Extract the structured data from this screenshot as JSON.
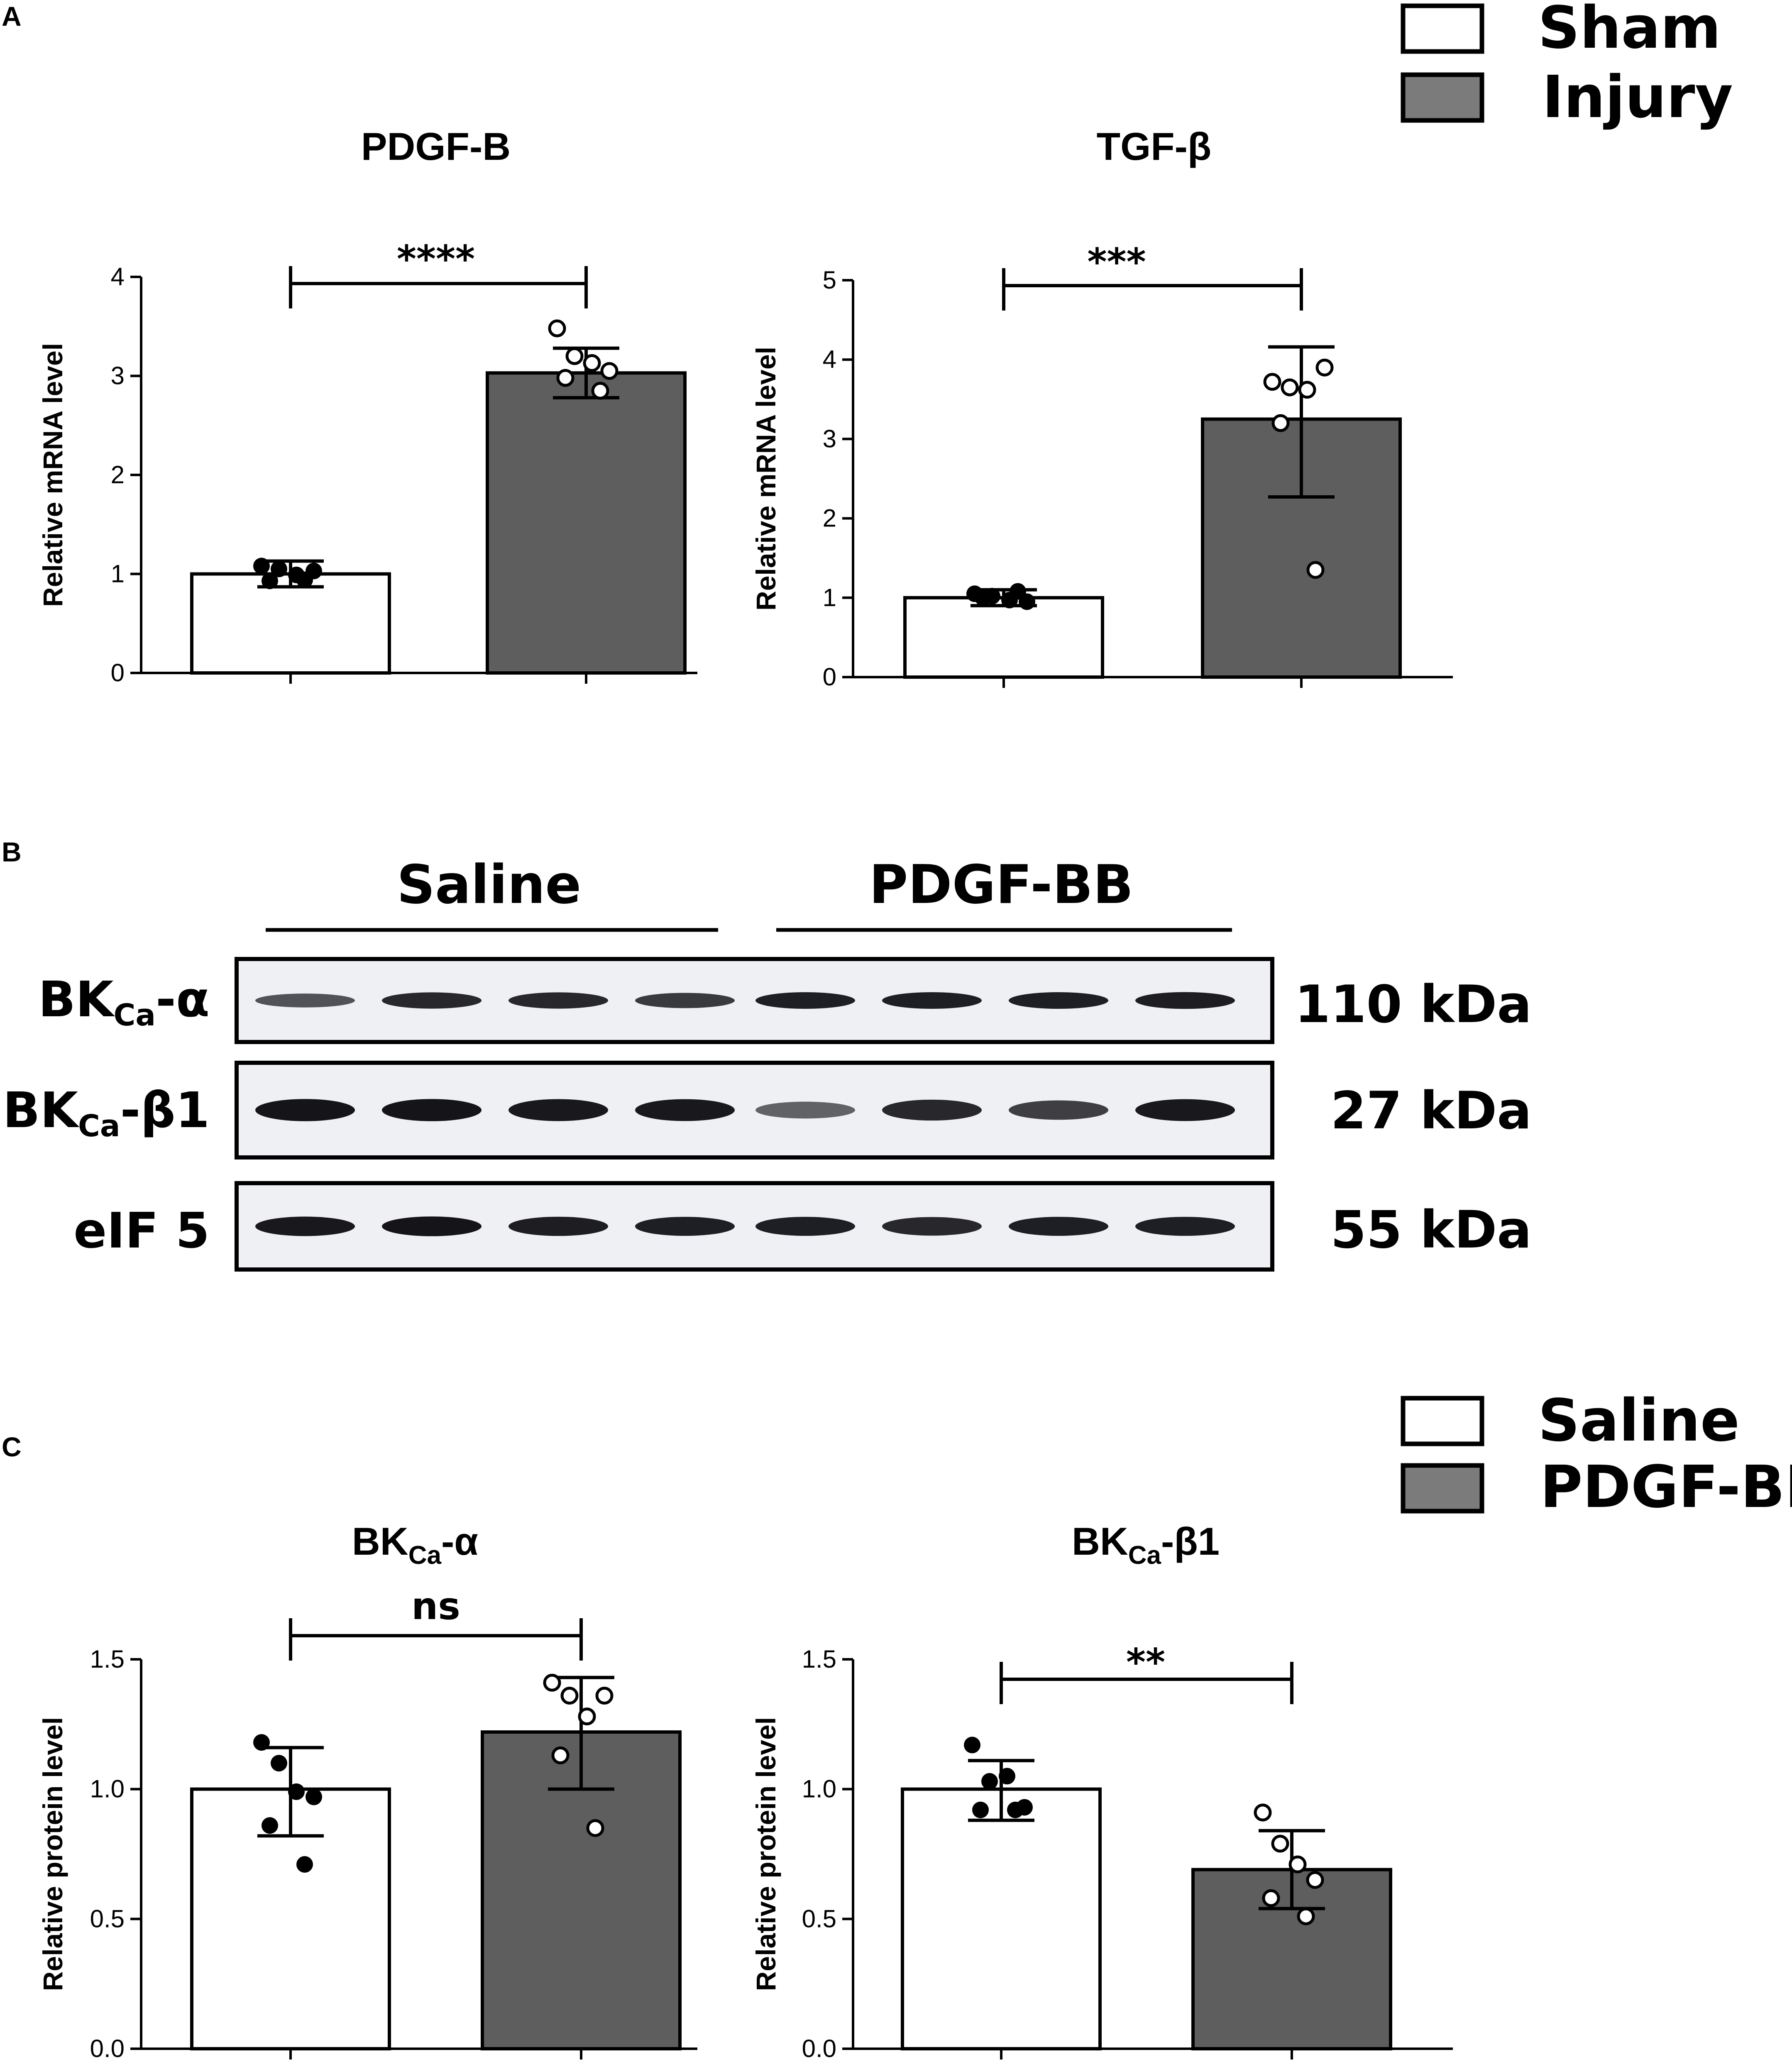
{
  "panel_labels": {
    "A": "A",
    "B": "B",
    "C": "C"
  },
  "colors": {
    "control_fill": "#ffffff",
    "treated_fill": "#5e5e5e",
    "legend_treated_fill": "#7b7b7b",
    "axis": "#000000",
    "blot_background": "#eef0f4",
    "band": "#111116"
  },
  "legend_A": {
    "items": [
      {
        "label": "Sham",
        "fill": "#ffffff"
      },
      {
        "label": "Injury",
        "fill": "#7b7b7b"
      }
    ]
  },
  "legend_C": {
    "items": [
      {
        "label": "Saline",
        "fill": "#ffffff"
      },
      {
        "label": "PDGF-BB",
        "fill": "#7b7b7b"
      }
    ]
  },
  "chart_data": [
    {
      "id": "pdgfb",
      "type": "bar",
      "title": "PDGF-B",
      "ylabel": "Relative mRNA level",
      "ylim": [
        0,
        4
      ],
      "yticks": [
        "0",
        "1",
        "2",
        "3",
        "4"
      ],
      "ytick_values": [
        0,
        1,
        2,
        3,
        4
      ],
      "categories": [
        "Sham",
        "Injury"
      ],
      "values": [
        1.0,
        3.03
      ],
      "sd_low": [
        0.87,
        2.78
      ],
      "sd_high": [
        1.13,
        3.28
      ],
      "points": [
        [
          1.08,
          1.05,
          0.99,
          1.03,
          0.93,
          0.94
        ],
        [
          3.48,
          3.2,
          3.13,
          3.05,
          2.98,
          2.85
        ]
      ],
      "significance": "****"
    },
    {
      "id": "tgfb",
      "type": "bar",
      "title": "TGF-β",
      "ylabel": "Relative mRNA level",
      "ylim": [
        0,
        5
      ],
      "yticks": [
        "0",
        "1",
        "2",
        "3",
        "4",
        "5"
      ],
      "ytick_values": [
        0,
        1,
        2,
        3,
        4,
        5
      ],
      "categories": [
        "Sham",
        "Injury"
      ],
      "values": [
        1.0,
        3.25
      ],
      "sd_low": [
        0.9,
        2.27
      ],
      "sd_high": [
        1.1,
        4.16
      ],
      "points": [
        [
          1.05,
          1.02,
          0.97,
          0.95,
          1.0,
          1.08
        ],
        [
          3.72,
          3.65,
          3.62,
          3.9,
          3.2,
          1.35
        ]
      ],
      "significance": "***"
    },
    {
      "id": "bka",
      "type": "bar",
      "title": "BKCa-α",
      "title_parts": [
        "BK",
        "Ca",
        "-α"
      ],
      "ylabel": "Relative protein level",
      "ylim": [
        0,
        1.5
      ],
      "yticks": [
        "0.0",
        "0.5",
        "1.0",
        "1.5"
      ],
      "ytick_values": [
        0,
        0.5,
        1.0,
        1.5
      ],
      "categories": [
        "Saline",
        "PDGF-BB"
      ],
      "values": [
        1.0,
        1.22
      ],
      "sd_low": [
        0.82,
        1.0
      ],
      "sd_high": [
        1.16,
        1.43
      ],
      "points": [
        [
          1.18,
          1.1,
          0.99,
          0.97,
          0.86,
          0.71
        ],
        [
          1.41,
          1.36,
          1.28,
          1.36,
          1.13,
          0.85
        ]
      ],
      "significance": "ns"
    },
    {
      "id": "bkb1",
      "type": "bar",
      "title": "BKCa-β1",
      "title_parts": [
        "BK",
        "Ca",
        "-β1"
      ],
      "ylabel": "Relative protein level",
      "ylim": [
        0,
        1.5
      ],
      "yticks": [
        "0.0",
        "0.5",
        "1.0",
        "1.5"
      ],
      "ytick_values": [
        0,
        0.5,
        1.0,
        1.5
      ],
      "categories": [
        "Saline",
        "PDGF-BB"
      ],
      "values": [
        1.0,
        0.69
      ],
      "sd_low": [
        0.88,
        0.54
      ],
      "sd_high": [
        1.11,
        0.84
      ],
      "points": [
        [
          1.17,
          1.03,
          1.05,
          0.93,
          0.92,
          0.92
        ],
        [
          0.91,
          0.79,
          0.71,
          0.65,
          0.58,
          0.51
        ]
      ],
      "significance": "**"
    }
  ],
  "blot": {
    "groups": [
      "Saline",
      "PDGF-BB"
    ],
    "rows": [
      {
        "label_main": "BK",
        "label_sub": "Ca",
        "label_tail": "-α",
        "size": "110 kDa",
        "intensity": [
          0.55,
          0.85,
          0.85,
          0.72,
          0.9,
          0.9,
          0.9,
          0.92
        ]
      },
      {
        "label_main": "BK",
        "label_sub": "Ca",
        "label_tail": "-β1",
        "size": "27 kDa",
        "intensity": [
          0.98,
          0.98,
          0.96,
          0.95,
          0.45,
          0.85,
          0.7,
          0.95
        ]
      },
      {
        "label_main": "eIF 5",
        "label_sub": "",
        "label_tail": "",
        "size": "55 kDa",
        "intensity": [
          0.95,
          0.98,
          0.92,
          0.9,
          0.9,
          0.85,
          0.9,
          0.9
        ]
      }
    ]
  }
}
